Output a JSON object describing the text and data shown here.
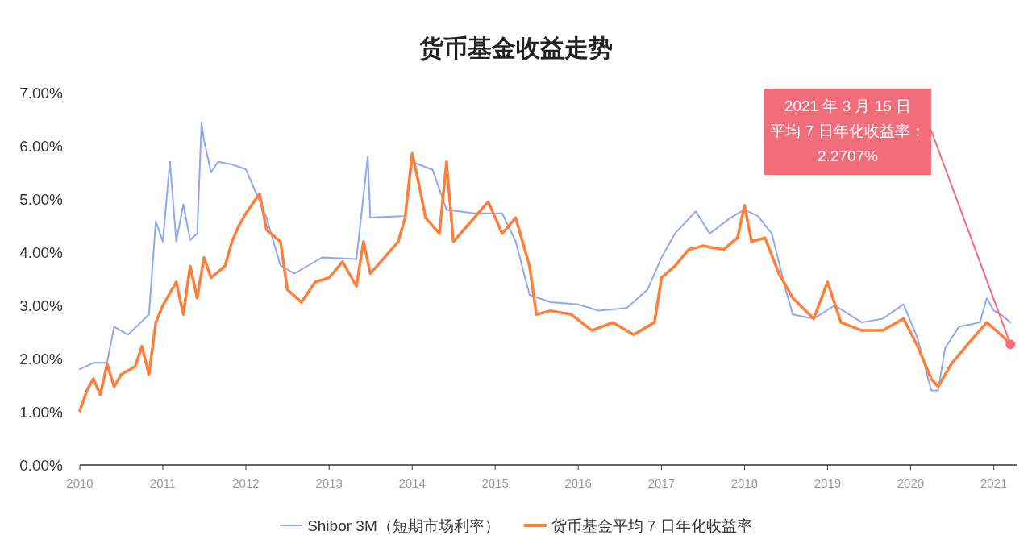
{
  "chart_data": {
    "type": "line",
    "title": "货币基金收益走势",
    "xlim": [
      "2010-01-01",
      "2021-04-15"
    ],
    "xticks": [
      "2010",
      "2011",
      "2012",
      "2013",
      "2014",
      "2015",
      "2016",
      "2017",
      "2018",
      "2019",
      "2020",
      "2021"
    ],
    "ylim": [
      0,
      7
    ],
    "yticks": [
      {
        "value": 0,
        "label": "0.00%"
      },
      {
        "value": 1,
        "label": "1.00%"
      },
      {
        "value": 2,
        "label": "2.00%"
      },
      {
        "value": 3,
        "label": "3.00%"
      },
      {
        "value": 4,
        "label": "4.00%"
      },
      {
        "value": 5,
        "label": "5.00%"
      },
      {
        "value": 6,
        "label": "6.00%"
      },
      {
        "value": 7,
        "label": "7.00%"
      }
    ],
    "legend": "bottom",
    "series": [
      {
        "name": "Shibor 3M（短期市场利率）",
        "color": "#8fa8f5",
        "x": [
          "2010-01",
          "2010-03",
          "2010-05",
          "2010-06",
          "2010-08",
          "2010-10",
          "2010-11",
          "2010-12",
          "2011-01",
          "2011-02",
          "2011-03",
          "2011-04",
          "2011-05",
          "2011-06",
          "2011-06-20",
          "2011-07",
          "2011-08",
          "2011-09",
          "2011-11",
          "2012-01",
          "2012-02",
          "2012-04",
          "2012-05",
          "2012-06",
          "2012-08",
          "2012-10",
          "2012-12",
          "2013-05",
          "2013-06-20",
          "2013-07",
          "2013-12",
          "2014-01",
          "2014-04",
          "2014-06",
          "2014-10",
          "2015-02",
          "2015-04",
          "2015-06",
          "2015-09",
          "2016-01",
          "2016-04",
          "2016-08",
          "2016-11",
          "2017-01",
          "2017-03",
          "2017-06",
          "2017-08",
          "2017-11",
          "2018-01",
          "2018-03",
          "2018-05",
          "2018-07",
          "2018-08",
          "2018-11",
          "2019-02",
          "2019-06",
          "2019-09",
          "2019-12",
          "2020-02",
          "2020-04",
          "2020-05",
          "2020-06",
          "2020-08",
          "2020-11",
          "2020-12",
          "2021-01",
          "2021-02",
          "2021-03-15"
        ],
        "values": [
          1.8,
          1.92,
          1.92,
          2.6,
          2.45,
          2.7,
          2.83,
          4.58,
          4.2,
          5.7,
          4.2,
          4.9,
          4.23,
          4.35,
          6.44,
          6.1,
          5.5,
          5.7,
          5.65,
          5.56,
          5.25,
          4.65,
          4.2,
          3.75,
          3.6,
          3.75,
          3.9,
          3.87,
          5.8,
          4.65,
          4.68,
          5.7,
          5.55,
          4.8,
          4.73,
          4.73,
          4.2,
          3.2,
          3.06,
          3.02,
          2.9,
          2.95,
          3.3,
          3.9,
          4.35,
          4.77,
          4.35,
          4.65,
          4.8,
          4.68,
          4.35,
          3.3,
          2.83,
          2.75,
          3.0,
          2.68,
          2.75,
          3.02,
          2.38,
          1.4,
          1.4,
          2.2,
          2.6,
          2.68,
          3.14,
          2.9,
          2.83,
          2.68
        ]
      },
      {
        "name": "货币基金平均 7 日年化收益率",
        "color": "#ff7f3a",
        "x": [
          "2010-01",
          "2010-02",
          "2010-03",
          "2010-04",
          "2010-05",
          "2010-06",
          "2010-07",
          "2010-09",
          "2010-10",
          "2010-11",
          "2010-12",
          "2011-01",
          "2011-03",
          "2011-04",
          "2011-05",
          "2011-06",
          "2011-07",
          "2011-08",
          "2011-10",
          "2011-11",
          "2011-12",
          "2012-01",
          "2012-03",
          "2012-04",
          "2012-06",
          "2012-07",
          "2012-09",
          "2012-11",
          "2013-01",
          "2013-03",
          "2013-05",
          "2013-06",
          "2013-07",
          "2013-09",
          "2013-11",
          "2013-12",
          "2014-01",
          "2014-02",
          "2014-03",
          "2014-05",
          "2014-06",
          "2014-07",
          "2014-09",
          "2014-12",
          "2015-02",
          "2015-04",
          "2015-06",
          "2015-07",
          "2015-09",
          "2015-12",
          "2016-03",
          "2016-06",
          "2016-09",
          "2016-12",
          "2017-01",
          "2017-03",
          "2017-05",
          "2017-07",
          "2017-10",
          "2017-12",
          "2018-01",
          "2018-02",
          "2018-04",
          "2018-06",
          "2018-08",
          "2018-11",
          "2019-01",
          "2019-03",
          "2019-06",
          "2019-09",
          "2019-12",
          "2020-02",
          "2020-04",
          "2020-05",
          "2020-07",
          "2020-10",
          "2020-12",
          "2021-02",
          "2021-03-15"
        ],
        "values": [
          1.02,
          1.4,
          1.62,
          1.32,
          1.9,
          1.47,
          1.7,
          1.85,
          2.23,
          1.7,
          2.68,
          3.0,
          3.44,
          2.83,
          3.74,
          3.14,
          3.9,
          3.52,
          3.74,
          4.2,
          4.5,
          4.73,
          5.1,
          4.42,
          4.2,
          3.3,
          3.06,
          3.44,
          3.52,
          3.82,
          3.36,
          4.2,
          3.6,
          3.9,
          4.2,
          4.65,
          5.86,
          5.25,
          4.65,
          4.35,
          5.7,
          4.2,
          4.5,
          4.95,
          4.35,
          4.65,
          3.74,
          2.83,
          2.9,
          2.83,
          2.53,
          2.68,
          2.45,
          2.68,
          3.52,
          3.74,
          4.05,
          4.12,
          4.05,
          4.27,
          4.88,
          4.2,
          4.27,
          3.6,
          3.14,
          2.75,
          3.44,
          2.68,
          2.53,
          2.53,
          2.75,
          2.23,
          1.62,
          1.47,
          1.92,
          2.38,
          2.68,
          2.45,
          2.2707
        ]
      }
    ],
    "annotations": [
      "2021 年 3 月 15 日",
      {
        "text": "平均 7 日年化收益率：",
        "x": "2021-03-15",
        "y": 2.2707
      },
      "2.2707%"
    ]
  }
}
